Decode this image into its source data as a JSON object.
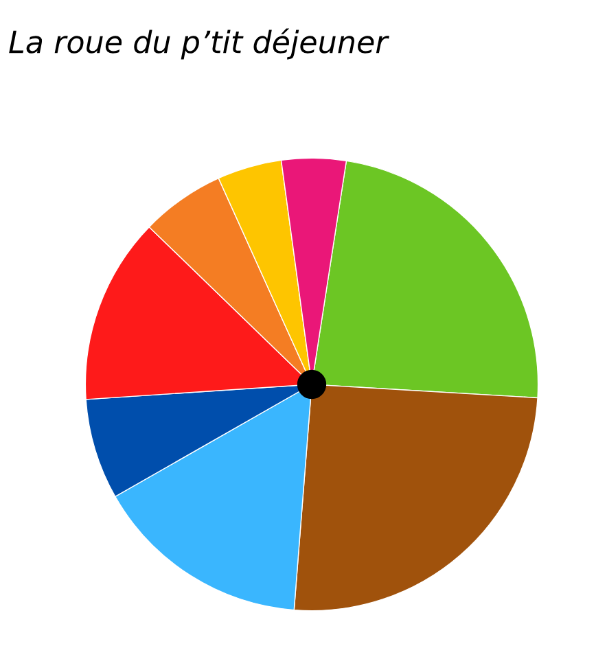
{
  "chart_data": {
    "type": "pie",
    "title": "La roue du p’tit déjeuner",
    "categories": [
      null,
      null,
      null,
      null,
      null,
      null,
      null,
      null
    ],
    "values": [
      23.5,
      25.3,
      15.5,
      7.2,
      13.3,
      6.0,
      4.6,
      4.6
    ],
    "colors": [
      "#6cc624",
      "#a0520c",
      "#3ab6fe",
      "#004eac",
      "#fe1a1a",
      "#f47d23",
      "#fec500",
      "#ea1778"
    ]
  }
}
